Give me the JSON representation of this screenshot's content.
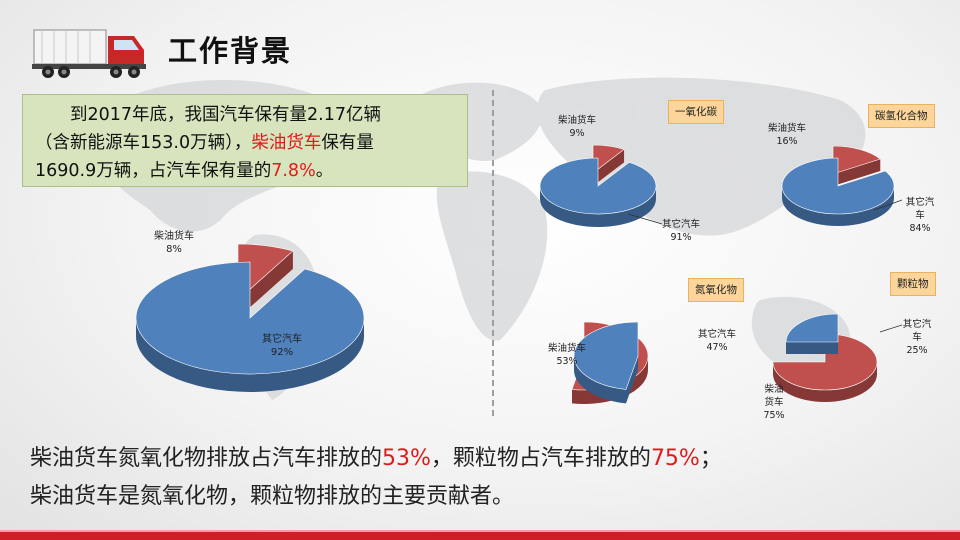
{
  "header": {
    "title": "工作背景",
    "truck_icon": "truck-icon"
  },
  "infobox": {
    "line1": "到2017年底，我国汽车保有量2.17亿辆",
    "line2_a": "（含新能源车153.0万辆），",
    "line2_red": "柴油货车",
    "line2_b": "保有量",
    "line3_a": "1690.9万辆，占汽车保有量的",
    "line3_red": "7.8%",
    "line3_b": "。"
  },
  "chart_data": [
    {
      "type": "pie",
      "style": "3d-exploded",
      "title": "",
      "slices": [
        {
          "label": "柴油货车",
          "value": 8,
          "value_label": "8%",
          "color": "#c0504d"
        },
        {
          "label": "其它汽车",
          "value": 92,
          "value_label": "92%",
          "color": "#4f81bd"
        }
      ]
    },
    {
      "type": "pie",
      "style": "3d-exploded",
      "title": "一氧化碳",
      "slices": [
        {
          "label": "柴油货车",
          "value": 9,
          "value_label": "9%",
          "color": "#c0504d"
        },
        {
          "label": "其它汽车",
          "value": 91,
          "value_label": "91%",
          "color": "#4f81bd"
        }
      ]
    },
    {
      "type": "pie",
      "style": "3d-exploded",
      "title": "碳氢化合物",
      "slices": [
        {
          "label": "柴油货车",
          "value": 16,
          "value_label": "16%",
          "color": "#c0504d"
        },
        {
          "label": "其它汽车",
          "value": 84,
          "value_label": "84%",
          "color": "#4f81bd"
        }
      ]
    },
    {
      "type": "pie",
      "style": "3d-exploded",
      "title": "氮氧化物",
      "slices": [
        {
          "label": "柴油货车",
          "value": 53,
          "value_label": "53%",
          "color": "#c0504d"
        },
        {
          "label": "其它汽车",
          "value": 47,
          "value_label": "47%",
          "color": "#4f81bd"
        }
      ]
    },
    {
      "type": "pie",
      "style": "3d-exploded",
      "title": "颗粒物",
      "slices": [
        {
          "label": "柴油货车",
          "value": 75,
          "value_label": "75%",
          "color": "#c0504d"
        },
        {
          "label": "其它汽车",
          "value": 25,
          "value_label": "25%",
          "color": "#4f81bd"
        }
      ]
    }
  ],
  "summary": {
    "line1_a": "柴油货车氮氧化物排放占汽车排放的",
    "line1_red1": "53%",
    "line1_b": "，颗粒物占汽车排放的",
    "line1_red2": "75%",
    "line1_c": "；",
    "line2": "柴油货车是氮氧化物，颗粒物排放的主要贡献者。"
  },
  "colors": {
    "accent_red": "#e01b1b",
    "infobox_bg": "#d7e4bd",
    "tag_bg": "#fbd59a",
    "pie_blue": "#4f81bd",
    "pie_red": "#c0504d",
    "footer_red": "#cf1f26"
  }
}
